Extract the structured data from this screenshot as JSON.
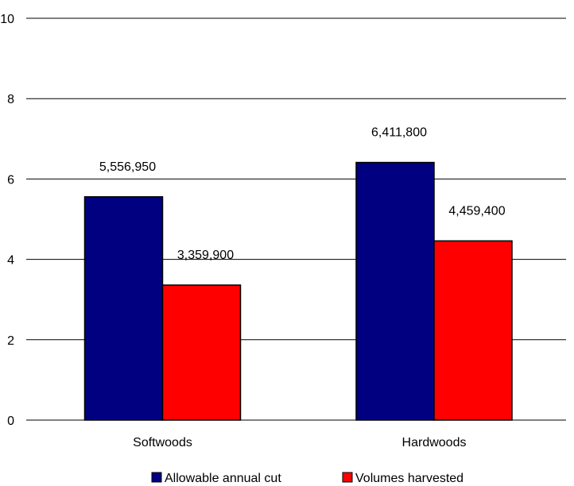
{
  "chart_data": {
    "type": "bar",
    "title": "",
    "xlabel": "",
    "ylabel": "",
    "categories": [
      "Softwoods",
      "Hardwoods"
    ],
    "ylim": [
      0,
      10
    ],
    "yticks": [
      "0",
      "2",
      "4",
      "6",
      "8",
      "10"
    ],
    "grid": true,
    "legend_position": "bottom",
    "series": [
      {
        "name": "Allowable annual cut",
        "color": "#000080",
        "values": [
          5.55695,
          6.4118
        ],
        "labels": [
          "5,556,950",
          "6,411,800"
        ]
      },
      {
        "name": "Volumes harvested",
        "color": "#ff0000",
        "values": [
          3.3599,
          4.4594
        ],
        "labels": [
          "3,359,900",
          "4,459,400"
        ]
      }
    ]
  }
}
